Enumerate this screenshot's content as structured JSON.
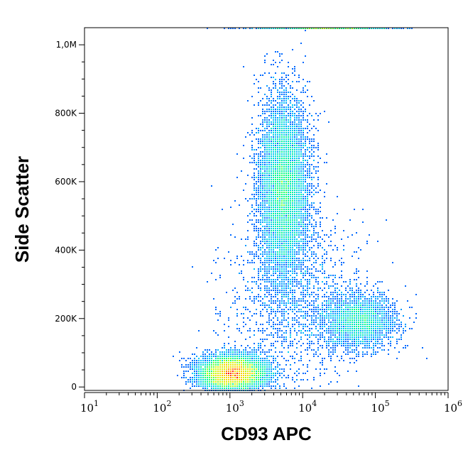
{
  "chart_data": {
    "type": "scatter",
    "subtype": "flow-cytometry-density-dot-plot",
    "xlabel": "CD93 APC",
    "ylabel": "Side Scatter",
    "x_scale": "log",
    "xlim": [
      10,
      1000000
    ],
    "ylim": [
      -10000,
      1050000
    ],
    "x_ticks": [
      {
        "base": "10",
        "exp": "1",
        "value": 10
      },
      {
        "base": "10",
        "exp": "2",
        "value": 100
      },
      {
        "base": "10",
        "exp": "3",
        "value": 1000
      },
      {
        "base": "10",
        "exp": "4",
        "value": 10000
      },
      {
        "base": "10",
        "exp": "5",
        "value": 100000
      },
      {
        "base": "10",
        "exp": "6",
        "value": 1000000
      }
    ],
    "y_ticks": [
      {
        "label": "0",
        "value": 0
      },
      {
        "label": "200K",
        "value": 200000
      },
      {
        "label": "400K",
        "value": 400000
      },
      {
        "label": "600K",
        "value": 600000
      },
      {
        "label": "800K",
        "value": 800000
      },
      {
        "label": "1,0M",
        "value": 1000000
      }
    ],
    "colormap": [
      "#0000ff",
      "#00c8ff",
      "#00ff80",
      "#c8ff00",
      "#ffd000",
      "#ff0000"
    ],
    "grid": false,
    "populations": [
      {
        "center_x": 1100,
        "center_y": 40000,
        "spread_log_x": 0.22,
        "spread_y": 25000,
        "relative_events": 0.42
      },
      {
        "center_x": 5500,
        "center_y": 580000,
        "spread_log_x": 0.17,
        "spread_y": 130000,
        "relative_events": 0.36
      },
      {
        "center_x": 60000,
        "center_y": 190000,
        "spread_log_x": 0.25,
        "spread_y": 40000,
        "relative_events": 0.12
      },
      {
        "center_x": 8000,
        "center_y": 250000,
        "spread_log_x": 0.45,
        "spread_y": 120000,
        "relative_events": 0.07
      },
      {
        "center_x": 20000,
        "center_y": 1050000,
        "spread_log_x": 0.45,
        "spread_y": 0,
        "relative_events": 0.03
      }
    ]
  }
}
